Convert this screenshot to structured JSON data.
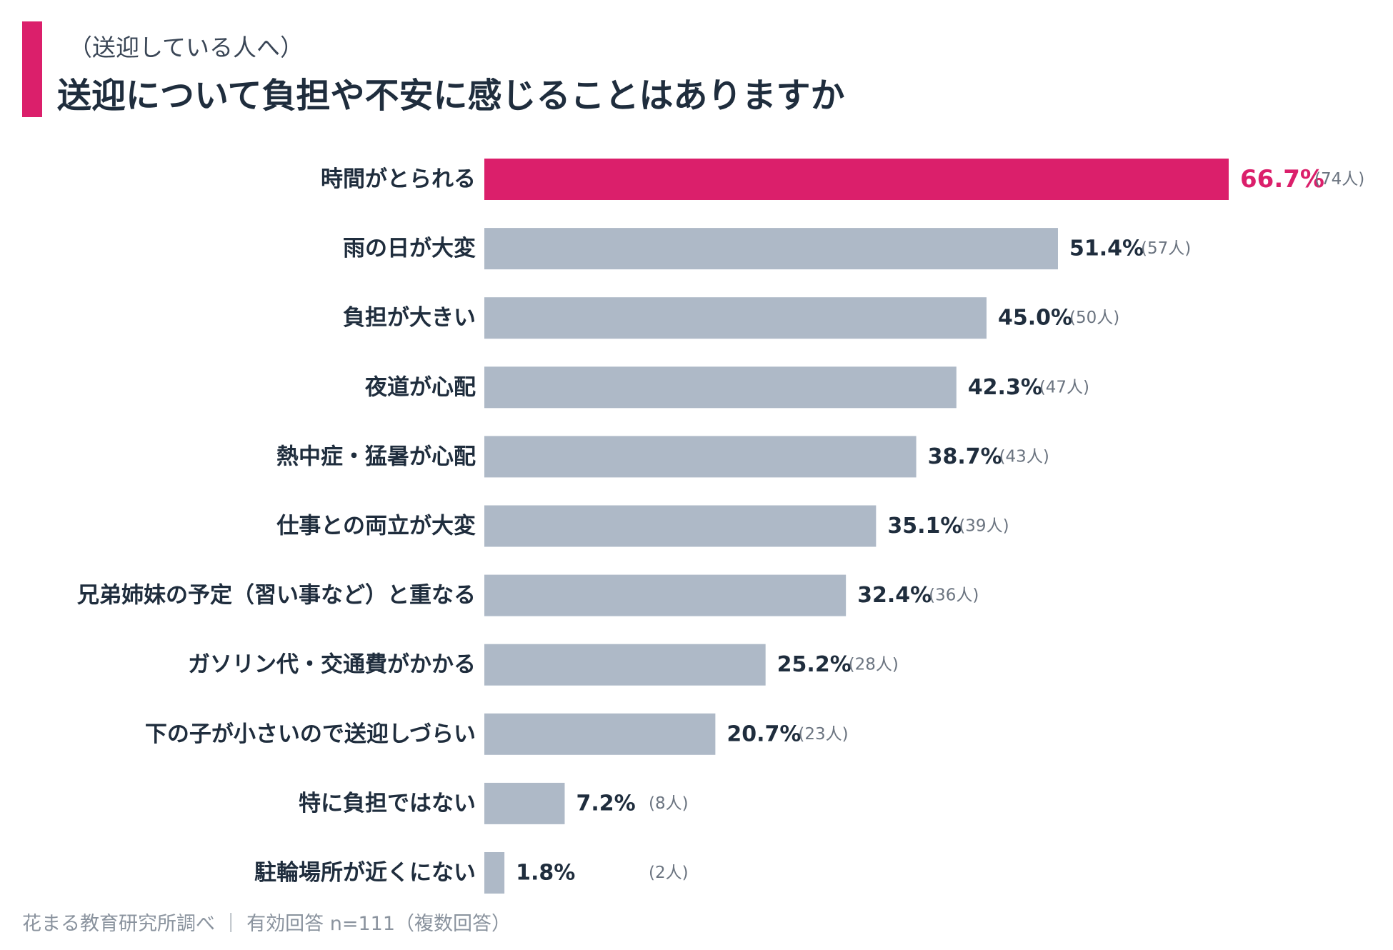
{
  "header": {
    "subtitle": "（送迎している人へ）",
    "title": "送迎について負担や不安に感じることはありますか"
  },
  "colors": {
    "accent": "#db1f6b",
    "bar": "#aeb9c7",
    "text": "#1f2d3d"
  },
  "chart_data": {
    "type": "bar",
    "orientation": "horizontal",
    "categories": [
      "時間がとられる",
      "雨の日が大変",
      "負担が大きい",
      "夜道が心配",
      "熱中症・猛暑が心配",
      "仕事との両立が大変",
      "兄弟姉妹の予定（習い事など）と重なる",
      "ガソリン代・交通費がかかる",
      "下の子が小さいので送迎しづらい",
      "特に負担ではない",
      "駐輪場所が近くにない"
    ],
    "values": [
      66.7,
      51.4,
      45.0,
      42.3,
      38.7,
      35.1,
      32.4,
      25.2,
      20.7,
      7.2,
      1.8
    ],
    "value_labels": [
      "66.7%",
      "51.4%",
      "45.0%",
      "42.3%",
      "38.7%",
      "35.1%",
      "32.4%",
      "25.2%",
      "20.7%",
      "7.2%",
      "1.8%"
    ],
    "count_labels": [
      "(74人)",
      "(57人)",
      "(50人)",
      "(47人)",
      "(43人)",
      "(39人)",
      "(36人)",
      "(28人)",
      "(23人)",
      "(8人)",
      "(2人)"
    ],
    "highlight_index": 0,
    "xlim": [
      0,
      66.7
    ],
    "grid": false,
    "legend": "none"
  },
  "footer": {
    "text": "花まる教育研究所調べ ｜ 有効回答 n=111（複数回答）"
  }
}
